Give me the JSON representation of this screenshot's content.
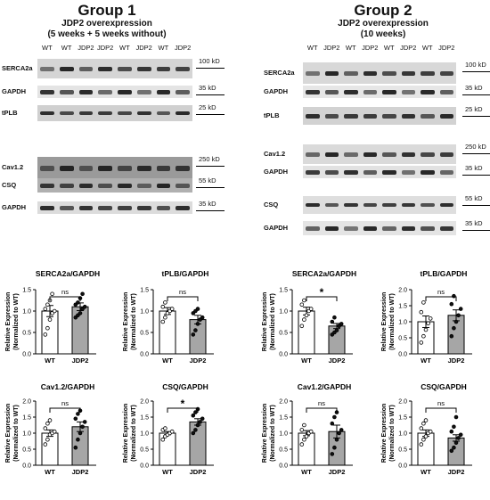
{
  "group1": {
    "title": "Group 1",
    "subtitle_1": "JDP2 overexpression",
    "subtitle_2": "(5 weeks + 5 weeks without)",
    "lanes": [
      "WT",
      "WT",
      "JDP2",
      "JDP2",
      "WT",
      "JDP2",
      "WT",
      "JDP2"
    ],
    "blots": [
      {
        "label": "SERCA2a",
        "marker": "100 kD"
      },
      {
        "label": "GAPDH",
        "marker": "35 kD"
      },
      {
        "label": "tPLB",
        "marker": "25 kD"
      },
      {
        "label": "Cav1.2",
        "marker": "250 kD"
      },
      {
        "label": "CSQ",
        "marker": "55 kD"
      },
      {
        "label": "GAPDH",
        "marker": "35 kD"
      }
    ]
  },
  "group2": {
    "title": "Group 2",
    "subtitle_1": "JDP2 overexpression",
    "subtitle_2": "(10 weeks)",
    "lanes": [
      "WT",
      "JDP2",
      "WT",
      "JDP2",
      "WT",
      "JDP2",
      "WT",
      "JDP2"
    ],
    "blots": [
      {
        "label": "SERCA2a",
        "marker": "100 kD"
      },
      {
        "label": "GAPDH",
        "marker": "35 kD"
      },
      {
        "label": "tPLB",
        "marker": "25 kD"
      },
      {
        "label": "Cav1.2",
        "marker": "250 kD"
      },
      {
        "label": "GAPDH",
        "marker": "35 kD"
      },
      {
        "label": "CSQ",
        "marker": "55 kD"
      },
      {
        "label": "GAPDH",
        "marker": "35 kD"
      }
    ]
  },
  "chart_data": [
    {
      "type": "bar",
      "title": "SERCA2a/GAPDH",
      "ylabel": "Relative Expression (Normalized to WT)",
      "categories": [
        "WT",
        "JDP2"
      ],
      "values": [
        1.0,
        1.1
      ],
      "errors": [
        0.13,
        0.09
      ],
      "ylim": [
        0,
        1.5
      ],
      "yticks": [
        0,
        0.5,
        1.0,
        1.5
      ],
      "significance": "ns",
      "points": [
        [
          0.45,
          0.6,
          0.8,
          0.95,
          1.0,
          1.05,
          1.15,
          1.25,
          1.4
        ],
        [
          0.85,
          0.9,
          0.95,
          1.05,
          1.1,
          1.15,
          1.2,
          1.3,
          1.4
        ]
      ]
    },
    {
      "type": "bar",
      "title": "tPLB/GAPDH",
      "ylabel": "Relative Expression (Normalized to WT)",
      "categories": [
        "WT",
        "JDP2"
      ],
      "values": [
        1.0,
        0.8
      ],
      "errors": [
        0.08,
        0.1
      ],
      "ylim": [
        0,
        1.5
      ],
      "yticks": [
        0,
        0.5,
        1.0,
        1.5
      ],
      "significance": "ns",
      "points": [
        [
          0.75,
          0.85,
          0.95,
          1.0,
          1.05,
          1.1,
          1.2
        ],
        [
          0.45,
          0.55,
          0.7,
          0.8,
          0.85,
          0.95,
          1.0,
          1.05
        ]
      ]
    },
    {
      "type": "bar",
      "title": "SERCA2a/GAPDH",
      "ylabel": "Relative Expression (Normalized to WT)",
      "categories": [
        "WT",
        "JDP2"
      ],
      "values": [
        1.0,
        0.65
      ],
      "errors": [
        0.09,
        0.06
      ],
      "ylim": [
        0,
        1.5
      ],
      "yticks": [
        0,
        0.5,
        1.0,
        1.5
      ],
      "significance": "*",
      "points": [
        [
          0.65,
          0.8,
          0.9,
          1.0,
          1.05,
          1.15,
          1.25
        ],
        [
          0.45,
          0.5,
          0.55,
          0.65,
          0.7,
          0.75,
          0.85
        ]
      ]
    },
    {
      "type": "bar",
      "title": "tPLB/GAPDH",
      "ylabel": "Relative Expression (Normalized to WT)",
      "categories": [
        "WT",
        "JDP2"
      ],
      "values": [
        1.0,
        1.2
      ],
      "errors": [
        0.18,
        0.17
      ],
      "ylim": [
        0,
        2.0
      ],
      "yticks": [
        0,
        0.5,
        1.0,
        1.5,
        2.0
      ],
      "significance": "ns",
      "points": [
        [
          0.35,
          0.55,
          0.75,
          0.95,
          1.1,
          1.3,
          1.6
        ],
        [
          0.55,
          0.8,
          1.0,
          1.2,
          1.4,
          1.55,
          1.8
        ]
      ]
    },
    {
      "type": "bar",
      "title": "Cav1.2/GAPDH",
      "ylabel": "Relative Expression (Normalized to WT)",
      "categories": [
        "WT",
        "JDP2"
      ],
      "values": [
        1.0,
        1.2
      ],
      "errors": [
        0.1,
        0.15
      ],
      "ylim": [
        0,
        2.0
      ],
      "yticks": [
        0,
        0.5,
        1.0,
        1.5,
        2.0
      ],
      "significance": "ns",
      "points": [
        [
          0.65,
          0.8,
          0.95,
          1.0,
          1.05,
          1.15,
          1.3,
          1.4
        ],
        [
          0.55,
          0.8,
          1.0,
          1.2,
          1.35,
          1.45,
          1.6,
          1.7
        ]
      ]
    },
    {
      "type": "bar",
      "title": "CSQ/GAPDH",
      "ylabel": "Relative Expression (Normalized to WT)",
      "categories": [
        "WT",
        "JDP2"
      ],
      "values": [
        1.0,
        1.35
      ],
      "errors": [
        0.05,
        0.1
      ],
      "ylim": [
        0,
        2.0
      ],
      "yticks": [
        0,
        0.5,
        1.0,
        1.5,
        2.0
      ],
      "significance": "*",
      "points": [
        [
          0.8,
          0.9,
          0.95,
          1.0,
          1.05,
          1.1,
          1.15
        ],
        [
          1.0,
          1.1,
          1.25,
          1.35,
          1.45,
          1.55,
          1.65,
          1.75
        ]
      ]
    },
    {
      "type": "bar",
      "title": "Cav1.2/GAPDH",
      "ylabel": "Relative Expression (Normalized to WT)",
      "categories": [
        "WT",
        "JDP2"
      ],
      "values": [
        1.0,
        1.05
      ],
      "errors": [
        0.08,
        0.2
      ],
      "ylim": [
        0,
        2.0
      ],
      "yticks": [
        0,
        0.5,
        1.0,
        1.5,
        2.0
      ],
      "significance": "ns",
      "points": [
        [
          0.65,
          0.8,
          0.9,
          1.0,
          1.05,
          1.1,
          1.25
        ],
        [
          0.35,
          0.55,
          0.8,
          1.0,
          1.1,
          1.3,
          1.5,
          1.65
        ]
      ]
    },
    {
      "type": "bar",
      "title": "CSQ/GAPDH",
      "ylabel": "Relative Expression (Normalized to WT)",
      "categories": [
        "WT",
        "JDP2"
      ],
      "values": [
        1.0,
        0.85
      ],
      "errors": [
        0.1,
        0.1
      ],
      "ylim": [
        0,
        2.0
      ],
      "yticks": [
        0,
        0.5,
        1.0,
        1.5,
        2.0
      ],
      "significance": "ns",
      "points": [
        [
          0.65,
          0.8,
          0.9,
          1.0,
          1.05,
          1.15,
          1.3,
          1.4
        ],
        [
          0.45,
          0.55,
          0.7,
          0.85,
          0.95,
          1.05,
          1.2,
          1.5
        ]
      ]
    }
  ],
  "colors": {
    "wt_bar": "#ffffff",
    "jdp2_bar": "#a6a6a6",
    "blot_bg": "#dedede",
    "band": "#2b2b2b"
  }
}
